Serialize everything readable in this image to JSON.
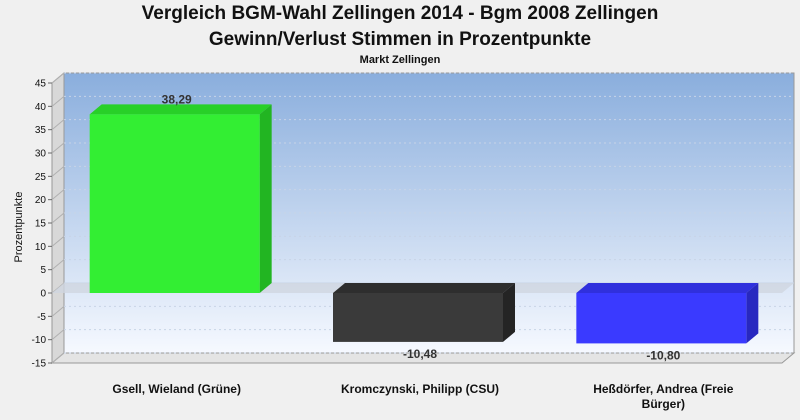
{
  "chart_data": {
    "type": "bar",
    "title": "Vergleich BGM-Wahl Zellingen 2014 - Bgm 2008 Zellingen",
    "title_line2": "Gewinn/Verlust Stimmen in Prozentpunkte",
    "subtitle": "Markt Zellingen",
    "ylabel": "Prozentpunkte",
    "xlabel": "",
    "ylim": [
      -15,
      45
    ],
    "yticks": [
      45,
      40,
      35,
      30,
      25,
      20,
      15,
      10,
      5,
      0,
      -5,
      -10,
      -15
    ],
    "categories": [
      [
        "Gsell, Wieland (Grüne)"
      ],
      [
        "Kromczynski, Philipp (CSU)"
      ],
      [
        "Heßdörfer, Andrea (Freie",
        "Bürger)"
      ]
    ],
    "values": [
      38.29,
      -10.48,
      -10.8
    ],
    "data_labels": [
      "38,29",
      "-10,48",
      "-10,80"
    ],
    "colors": [
      "#33ee33",
      "#3a3a3a",
      "#3a3aff"
    ],
    "side_colors": [
      "#22b522",
      "#242424",
      "#2828c0"
    ],
    "top_colors": [
      "#28d028",
      "#2e2e2e",
      "#3030dd"
    ],
    "grid": true,
    "legend": "none"
  }
}
